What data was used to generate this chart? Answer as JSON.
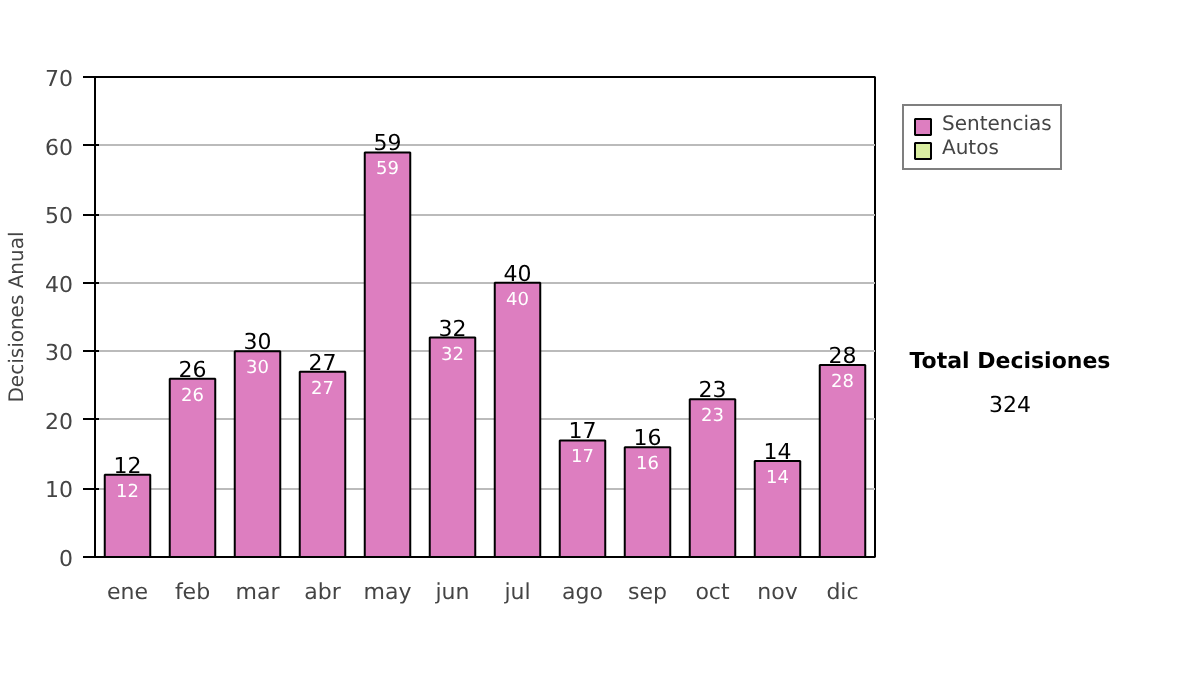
{
  "chart_data": {
    "type": "bar",
    "ylabel": "Decisiones Anual",
    "categories": [
      "ene",
      "feb",
      "mar",
      "abr",
      "may",
      "jun",
      "jul",
      "ago",
      "sep",
      "oct",
      "nov",
      "dic"
    ],
    "stacked": true,
    "series": [
      {
        "name": "Sentencias",
        "color": "#dd7ec0",
        "values": [
          12,
          26,
          30,
          27,
          59,
          32,
          40,
          17,
          16,
          23,
          14,
          28
        ]
      },
      {
        "name": "Autos",
        "color": "#d9eda0",
        "values": [
          null,
          null,
          null,
          null,
          null,
          null,
          null,
          null,
          null,
          null,
          null,
          null
        ]
      }
    ],
    "data_labels": true,
    "totals": [
      "12",
      "26",
      "30",
      "27",
      "59",
      "32",
      "40",
      "17",
      "16",
      "23",
      "14",
      "28"
    ],
    "ylim": [
      0,
      70
    ],
    "yticks": [
      0,
      10,
      20,
      30,
      40,
      50,
      60,
      70
    ],
    "grid": "y",
    "legend": "right",
    "annotations": [
      "Total Decisiones",
      "324"
    ]
  }
}
